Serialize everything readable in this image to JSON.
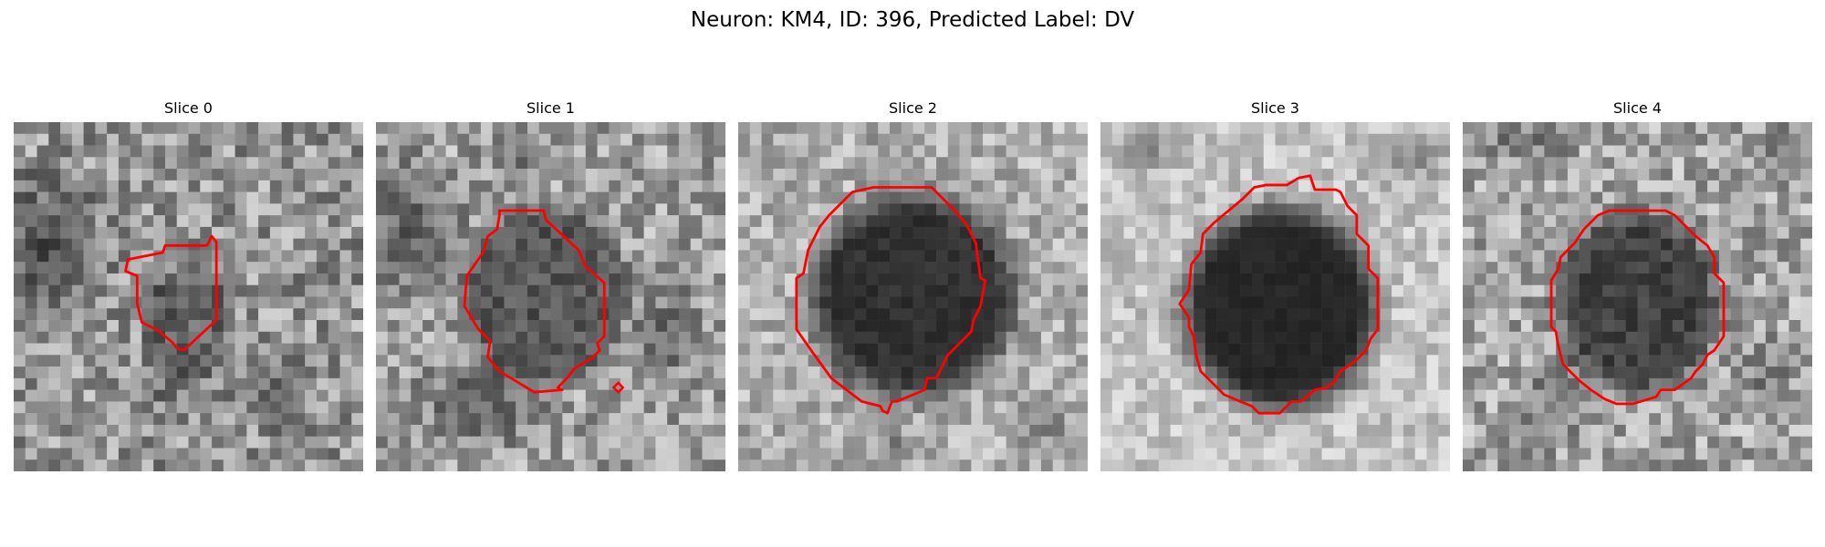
{
  "figure": {
    "title": "Neuron: KM4, ID: 396, Predicted Label: DV"
  },
  "panels": [
    {
      "title": "Slice 0"
    },
    {
      "title": "Slice 1"
    },
    {
      "title": "Slice 2"
    },
    {
      "title": "Slice 3"
    },
    {
      "title": "Slice 4"
    }
  ],
  "colors": {
    "contour": "#ff0000",
    "background": "#ffffff"
  }
}
